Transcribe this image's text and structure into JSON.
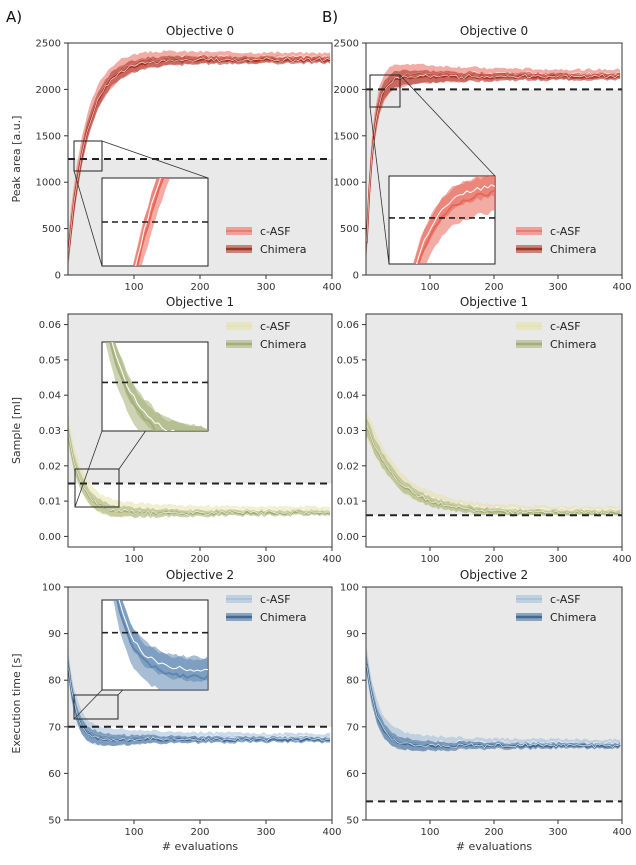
{
  "panel_labels": [
    "A)",
    "B)"
  ],
  "chart_data": [
    {
      "id": "A0",
      "type": "line",
      "title": "Objective 0",
      "ylabel": "Peak area [a.u.]",
      "xlabel": "",
      "xlim": [
        0,
        400
      ],
      "ylim": [
        0,
        2500
      ],
      "yticks": [
        0,
        500,
        1000,
        1500,
        2000,
        2500
      ],
      "xticks": [
        100,
        200,
        300,
        400
      ],
      "threshold": 1250,
      "threshold_region": "below",
      "series": [
        {
          "name": "c-ASF",
          "color": "#e8675a",
          "style": "light"
        },
        {
          "name": "Chimera",
          "color": "#a83224",
          "style": "bold"
        }
      ],
      "curve": {
        "type": "rise",
        "start": 200,
        "plateau": 2330,
        "k": 0.035
      },
      "inset": {
        "xr": [
          0,
          45
        ],
        "yr": [
          1050,
          1450
        ],
        "color": "#e8675a"
      }
    },
    {
      "id": "B0",
      "type": "line",
      "title": "Objective 0",
      "ylabel": "",
      "xlabel": "",
      "xlim": [
        0,
        400
      ],
      "ylim": [
        0,
        2500
      ],
      "yticks": [
        0,
        500,
        1000,
        1500,
        2000,
        2500
      ],
      "xticks": [
        100,
        200,
        300,
        400
      ],
      "threshold": 2000,
      "threshold_region": "below",
      "series": [
        {
          "name": "c-ASF",
          "color": "#e8675a",
          "style": "light"
        },
        {
          "name": "Chimera",
          "color": "#a83224",
          "style": "bold"
        }
      ],
      "curve": {
        "type": "rise",
        "start": 200,
        "plateau": 2150,
        "k": 0.09
      },
      "inset": {
        "xr": [
          5,
          55
        ],
        "yr": [
          1780,
          2200
        ],
        "color": "#e8675a"
      }
    },
    {
      "id": "A1",
      "type": "line",
      "title": "Objective 1",
      "ylabel": "Sample [ml]",
      "xlabel": "",
      "xlim": [
        0,
        400
      ],
      "ylim": [
        -0.003,
        0.063
      ],
      "yticks": [
        0.0,
        0.01,
        0.02,
        0.03,
        0.04,
        0.05,
        0.06
      ],
      "xticks": [
        100,
        200,
        300,
        400
      ],
      "threshold": 0.015,
      "threshold_region": "above",
      "series": [
        {
          "name": "c-ASF",
          "color": "#e6e2a8",
          "style": "light"
        },
        {
          "name": "Chimera",
          "color": "#a4ae76",
          "style": "bold"
        }
      ],
      "curve": {
        "type": "decay",
        "start": 0.03,
        "plateau": 0.007,
        "k": 0.05
      },
      "inset": {
        "xr": [
          5,
          80
        ],
        "yr": [
          0.009,
          0.02
        ],
        "color": "#a4ae76"
      }
    },
    {
      "id": "B1",
      "type": "line",
      "title": "Objective 1",
      "ylabel": "",
      "xlabel": "",
      "xlim": [
        0,
        400
      ],
      "ylim": [
        -0.003,
        0.063
      ],
      "yticks": [
        0.0,
        0.01,
        0.02,
        0.03,
        0.04,
        0.05,
        0.06
      ],
      "xticks": [
        100,
        200,
        300,
        400
      ],
      "threshold": 0.006,
      "threshold_region": "above",
      "series": [
        {
          "name": "c-ASF",
          "color": "#e6e2a8",
          "style": "light"
        },
        {
          "name": "Chimera",
          "color": "#a4ae76",
          "style": "bold"
        }
      ],
      "curve": {
        "type": "decay",
        "start": 0.032,
        "plateau": 0.007,
        "k": 0.02
      }
    },
    {
      "id": "A2",
      "type": "line",
      "title": "Objective 2",
      "ylabel": "Execution time [s]",
      "xlabel": "# evaluations",
      "xlim": [
        0,
        400
      ],
      "ylim": [
        50,
        100
      ],
      "yticks": [
        50,
        60,
        70,
        80,
        90,
        100
      ],
      "xticks": [
        100,
        200,
        300,
        400
      ],
      "threshold": 70,
      "threshold_region": "above",
      "series": [
        {
          "name": "c-ASF",
          "color": "#9dbbd8",
          "style": "light"
        },
        {
          "name": "Chimera",
          "color": "#3f6a97",
          "style": "bold"
        }
      ],
      "curve": {
        "type": "decay",
        "start": 84,
        "plateau": 67.5,
        "k": 0.08
      },
      "inset": {
        "xr": [
          5,
          80
        ],
        "yr": [
          66.5,
          72
        ],
        "color": "#5d86b1"
      }
    },
    {
      "id": "B2",
      "type": "line",
      "title": "Objective 2",
      "ylabel": "",
      "xlabel": "# evaluations",
      "xlim": [
        0,
        400
      ],
      "ylim": [
        50,
        100
      ],
      "yticks": [
        50,
        60,
        70,
        80,
        90,
        100
      ],
      "xticks": [
        100,
        200,
        300,
        400
      ],
      "threshold": 54,
      "threshold_region": "above",
      "series": [
        {
          "name": "c-ASF",
          "color": "#9dbbd8",
          "style": "light"
        },
        {
          "name": "Chimera",
          "color": "#3f6a97",
          "style": "bold"
        }
      ],
      "curve": {
        "type": "decay",
        "start": 85,
        "plateau": 66.2,
        "k": 0.06
      }
    }
  ]
}
